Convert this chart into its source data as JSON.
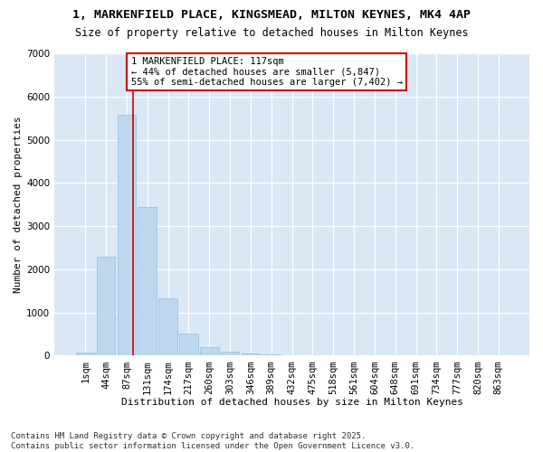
{
  "title_line1": "1, MARKENFIELD PLACE, KINGSMEAD, MILTON KEYNES, MK4 4AP",
  "title_line2": "Size of property relative to detached houses in Milton Keynes",
  "xlabel": "Distribution of detached houses by size in Milton Keynes",
  "ylabel": "Number of detached properties",
  "categories": [
    "1sqm",
    "44sqm",
    "87sqm",
    "131sqm",
    "174sqm",
    "217sqm",
    "260sqm",
    "303sqm",
    "346sqm",
    "389sqm",
    "432sqm",
    "475sqm",
    "518sqm",
    "561sqm",
    "604sqm",
    "648sqm",
    "691sqm",
    "734sqm",
    "777sqm",
    "820sqm",
    "863sqm"
  ],
  "values": [
    75,
    2300,
    5580,
    3450,
    1320,
    520,
    200,
    90,
    55,
    30,
    5,
    0,
    0,
    0,
    0,
    0,
    0,
    0,
    0,
    0,
    0
  ],
  "bar_color": "#BDD7EE",
  "bar_edge_color": "#9DC3E6",
  "vline_color": "#CC0000",
  "vline_x": 2.3,
  "annotation_text": "1 MARKENFIELD PLACE: 117sqm\n← 44% of detached houses are smaller (5,847)\n55% of semi-detached houses are larger (7,402) →",
  "annotation_box_edgecolor": "#CC0000",
  "annotation_bg": "white",
  "ylim": [
    0,
    7000
  ],
  "yticks": [
    0,
    1000,
    2000,
    3000,
    4000,
    5000,
    6000,
    7000
  ],
  "bg_color": "#DAE8F5",
  "grid_color": "white",
  "footer_line1": "Contains HM Land Registry data © Crown copyright and database right 2025.",
  "footer_line2": "Contains public sector information licensed under the Open Government Licence v3.0.",
  "title_fontsize": 9.5,
  "subtitle_fontsize": 8.5,
  "axis_label_fontsize": 8,
  "tick_fontsize": 7.5,
  "annotation_fontsize": 7.5,
  "footer_fontsize": 6.5
}
